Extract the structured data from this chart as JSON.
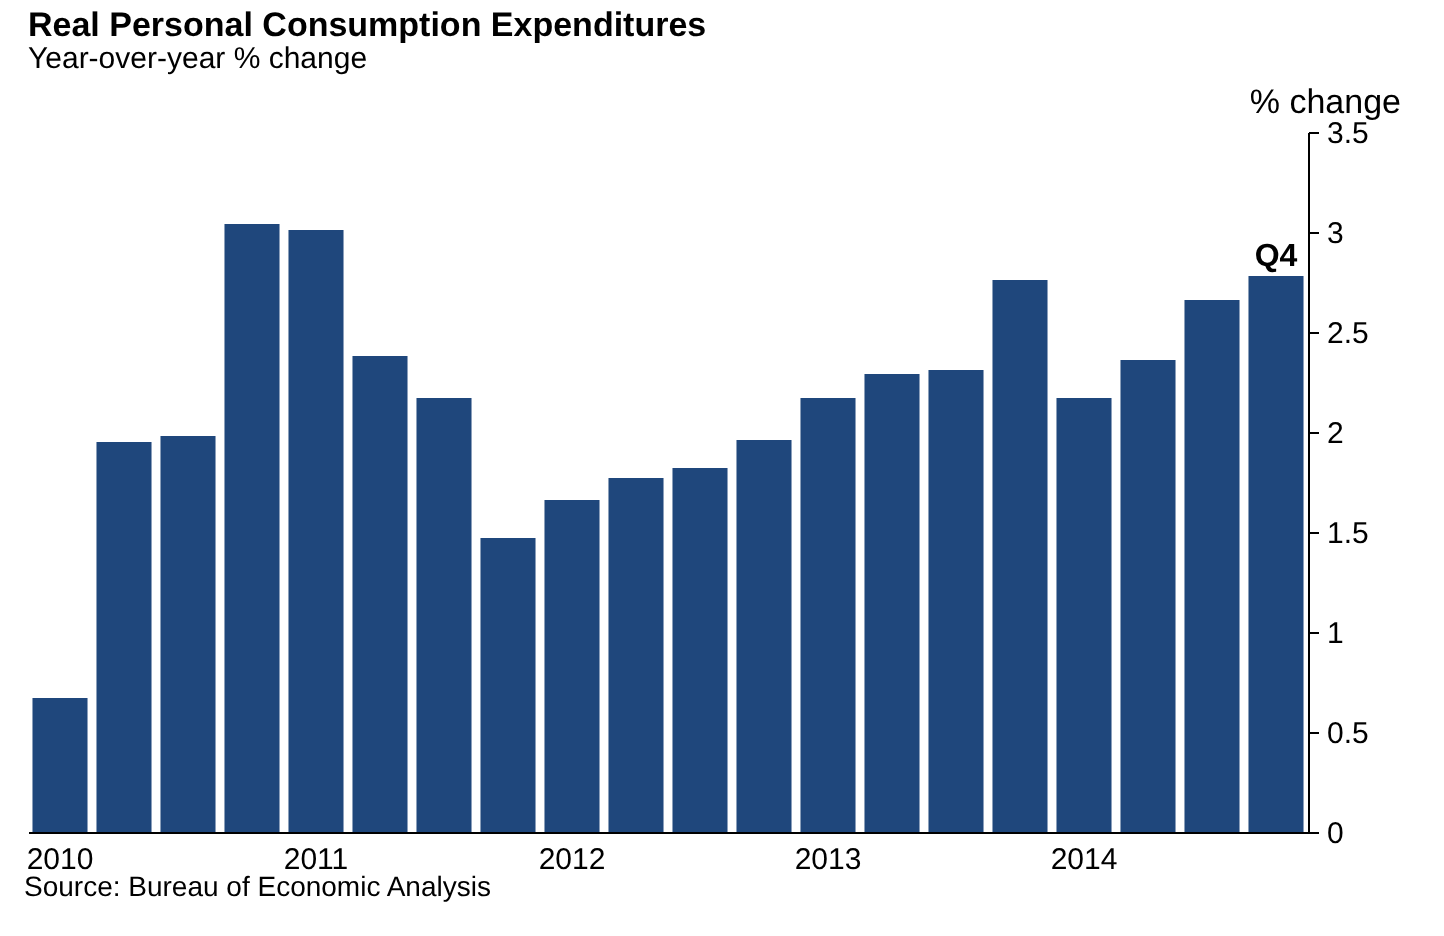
{
  "chart_data": {
    "type": "bar",
    "title": "Real Personal Consumption Expenditures",
    "subtitle": "Year-over-year % change",
    "ylabel": "% change",
    "categories": [
      "2010",
      null,
      null,
      null,
      "2011",
      null,
      null,
      null,
      "2012",
      null,
      null,
      null,
      "2013",
      null,
      null,
      null,
      "2014",
      null,
      null,
      null
    ],
    "values": [
      0.67,
      1.95,
      1.98,
      3.04,
      3.01,
      2.38,
      2.17,
      1.47,
      1.66,
      1.77,
      1.82,
      1.96,
      2.17,
      2.29,
      2.31,
      2.76,
      2.17,
      2.36,
      2.66,
      2.78
    ],
    "color": "#1f477c",
    "ylim": [
      0,
      3.5
    ],
    "yticks": [
      0,
      0.5,
      1,
      1.5,
      2,
      2.5,
      3,
      3.5
    ],
    "grid": false,
    "annotations": [
      {
        "text": "Q4",
        "y": 2.78
      },
      "Source: Bureau of Economic Analysis"
    ]
  }
}
